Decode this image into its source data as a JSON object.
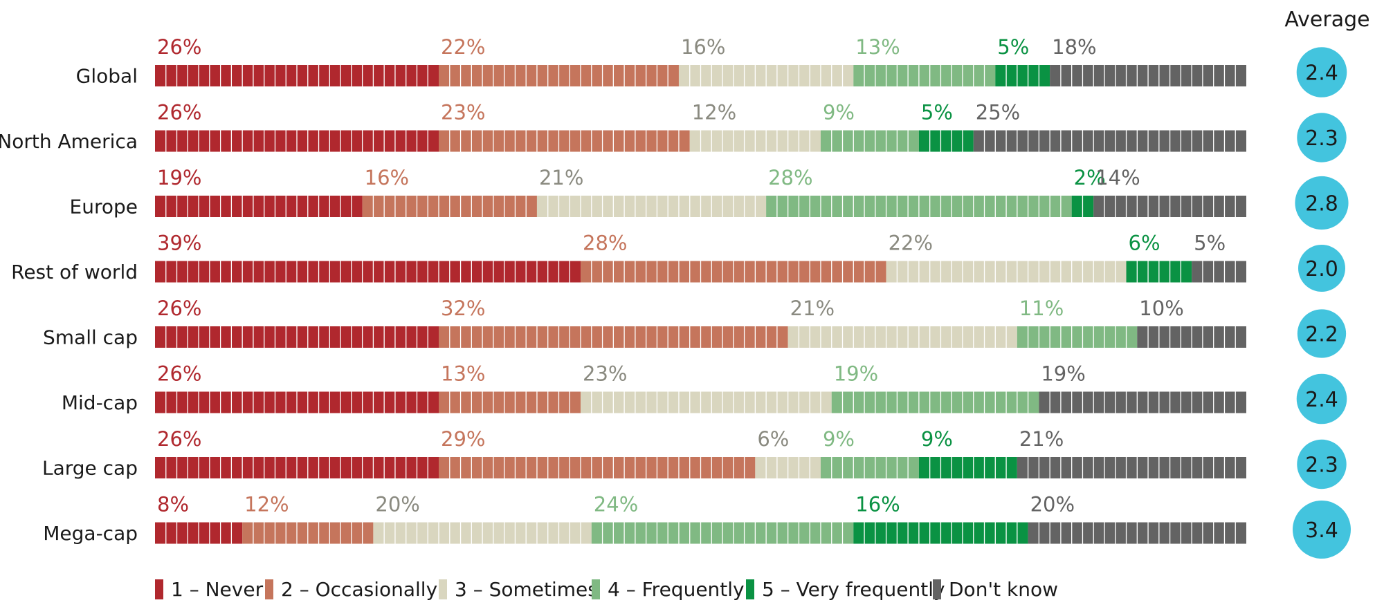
{
  "chart_data": {
    "type": "bar",
    "orientation": "horizontal",
    "stacked": true,
    "unit": "%",
    "average_header": "Average",
    "categories": [
      "Global",
      "North America",
      "Europe",
      "Rest of world",
      "Small cap",
      "Mid-cap",
      "Large cap",
      "Mega-cap"
    ],
    "series": [
      {
        "name": "1 – Never",
        "color": "#b0282e",
        "label_color": "#b0282e",
        "values": [
          26,
          26,
          19,
          39,
          26,
          26,
          26,
          8
        ]
      },
      {
        "name": "2 – Occasionally",
        "color": "#c5755c",
        "label_color": "#c5755c",
        "values": [
          22,
          23,
          16,
          28,
          32,
          13,
          29,
          12
        ]
      },
      {
        "name": "3 – Sometimes",
        "color": "#d9d6bf",
        "label_color": "#8a8a80",
        "values": [
          16,
          12,
          21,
          22,
          21,
          23,
          6,
          20
        ]
      },
      {
        "name": "4 – Frequently",
        "color": "#80b983",
        "label_color": "#80b983",
        "values": [
          13,
          9,
          28,
          0,
          11,
          19,
          9,
          24
        ]
      },
      {
        "name": "5 – Very frequently",
        "color": "#0a9243",
        "label_color": "#0a9243",
        "values": [
          5,
          5,
          2,
          6,
          0,
          0,
          9,
          16
        ]
      },
      {
        "name": "Don't know",
        "color": "#636363",
        "label_color": "#636363",
        "values": [
          18,
          25,
          14,
          5,
          10,
          19,
          21,
          20
        ]
      }
    ],
    "averages": [
      "2.4",
      "2.3",
      "2.8",
      "2.0",
      "2.2",
      "2.4",
      "2.3",
      "3.4"
    ],
    "average_circle_color": "#43c4de",
    "legend_position": "bottom-left"
  }
}
